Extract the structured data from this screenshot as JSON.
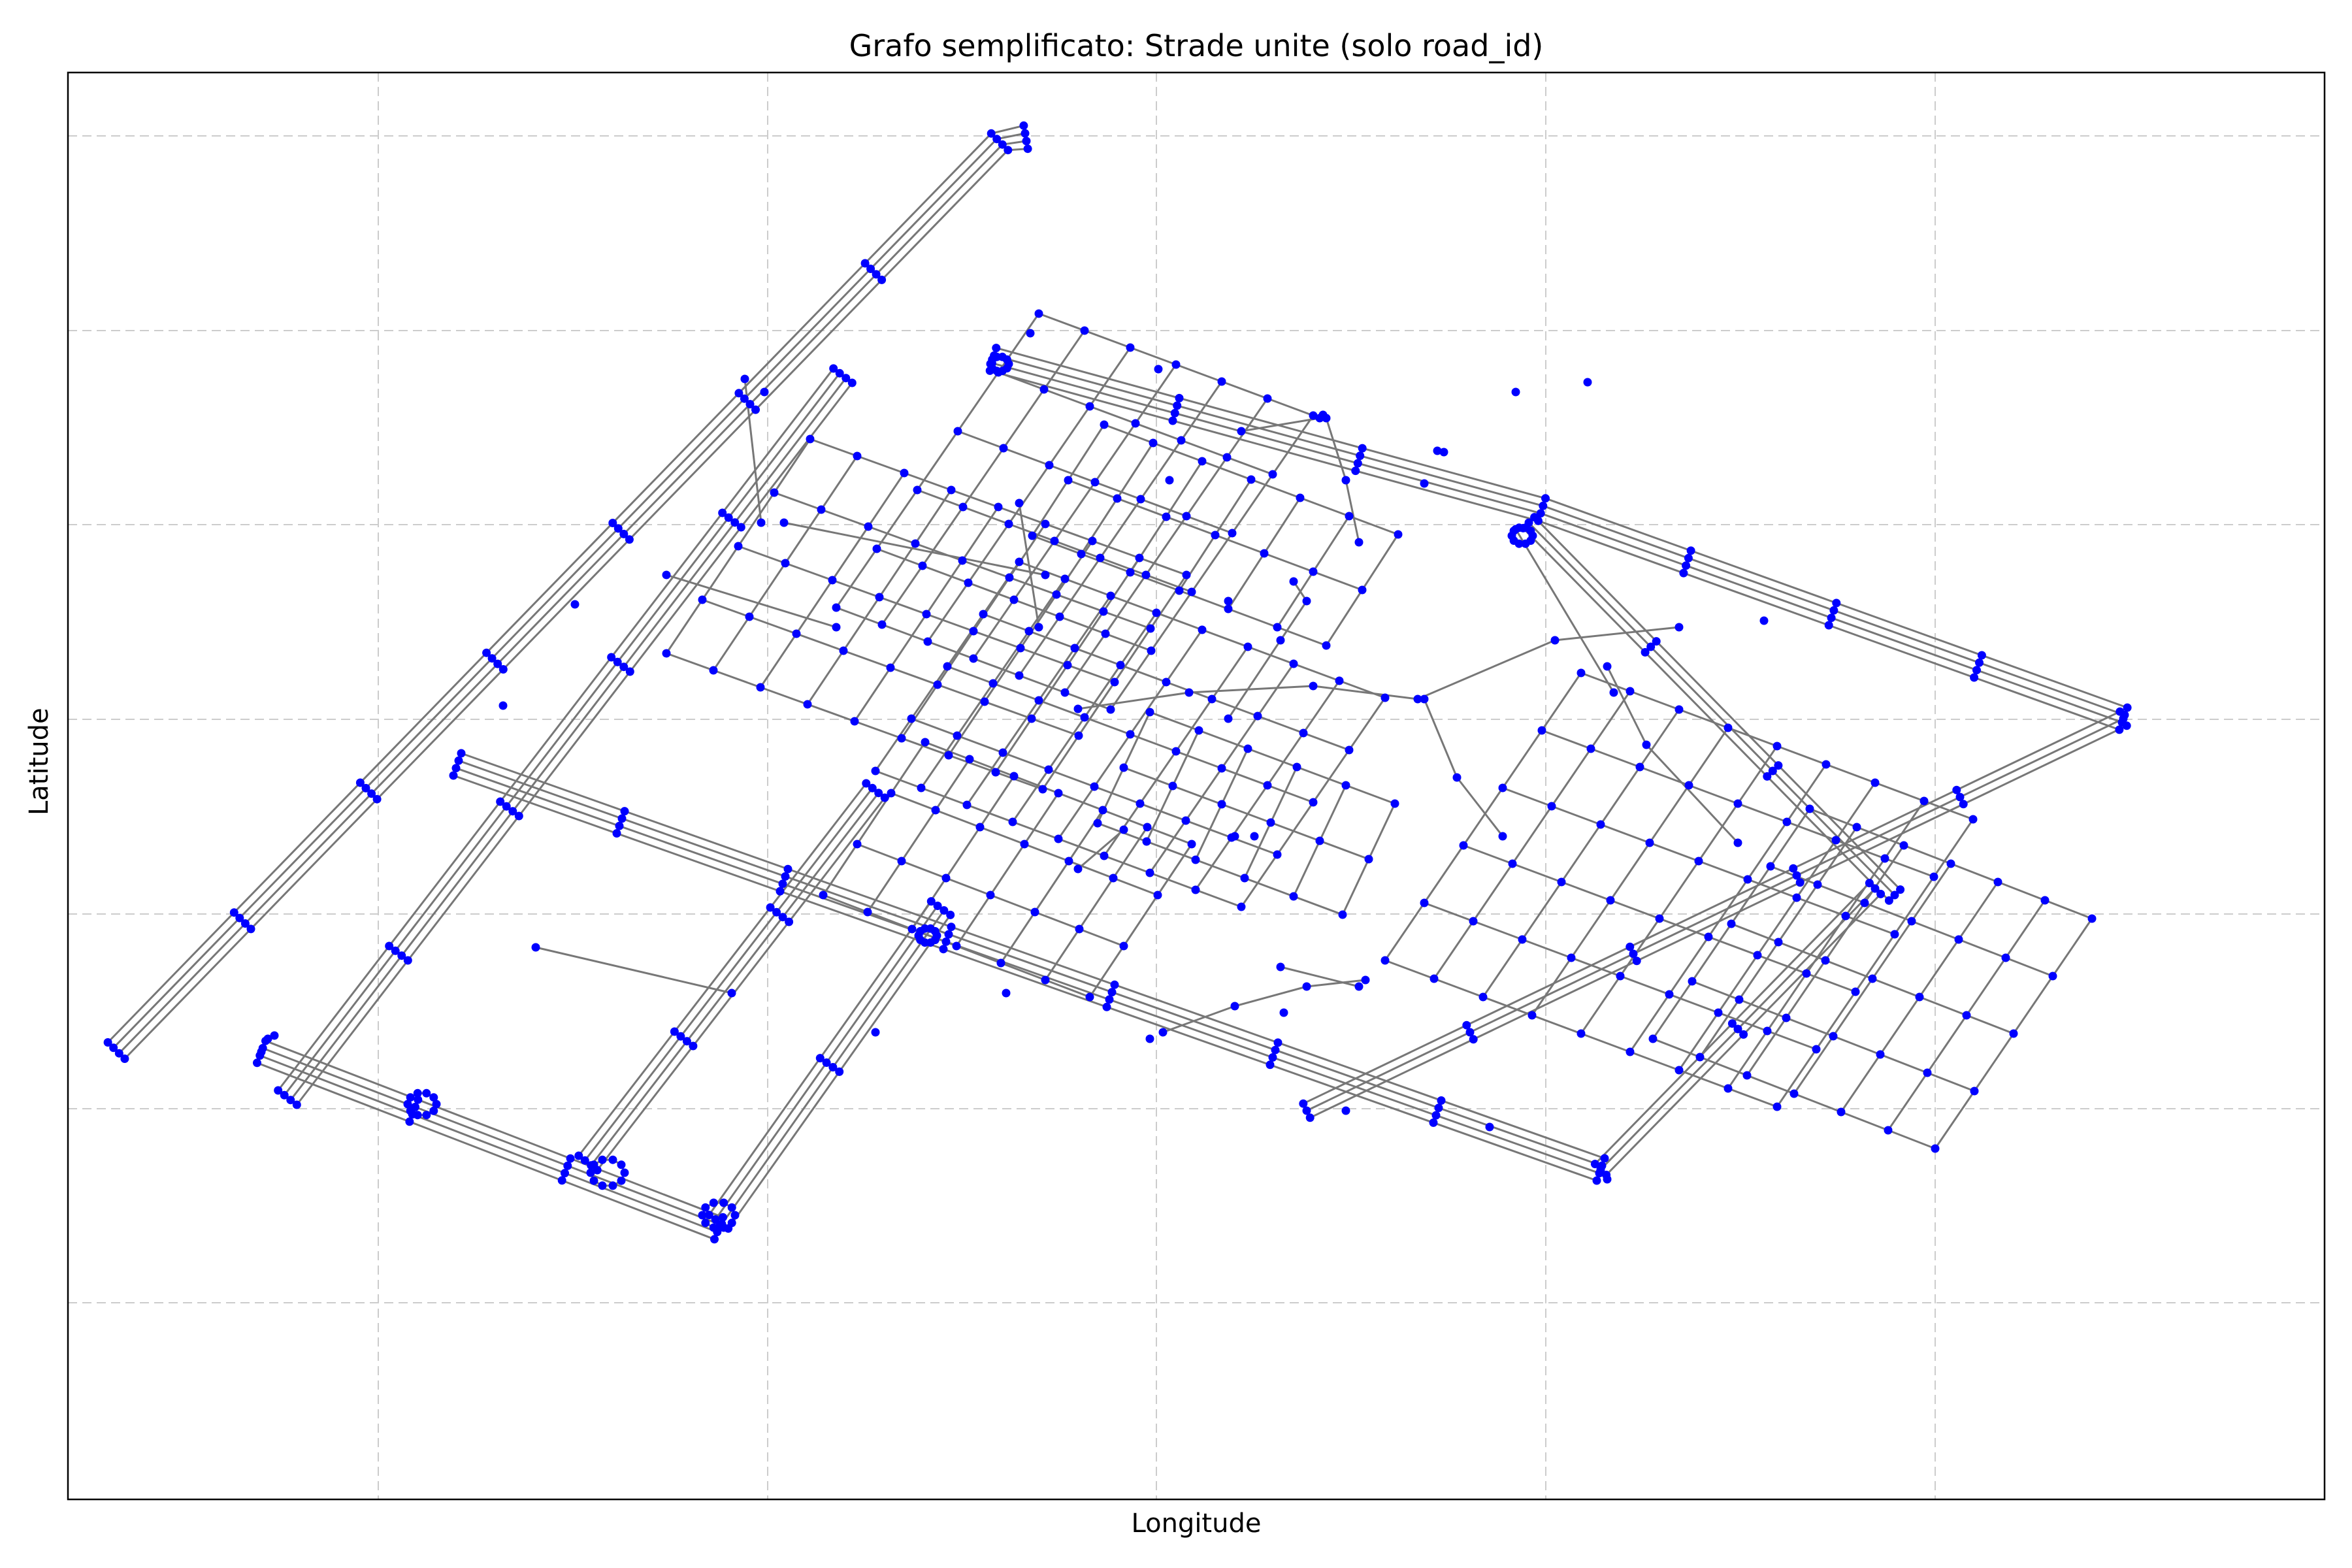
{
  "chart_data": {
    "type": "network",
    "title": "Grafo semplificato: Strade unite (solo road_id)",
    "xlabel": "Longitude",
    "ylabel": "Latitude",
    "xticks_visible": false,
    "yticks_visible": false,
    "grid": true,
    "legend": "none",
    "colors": {
      "node": "#0000ff",
      "edge": "#777777",
      "grid": "#cccccc",
      "frame": "#000000",
      "background": "#ffffff"
    },
    "layers": {
      "main_roads": [
        {
          "points": [
            [
              178,
              1608
            ],
            [
              1530,
              217
            ],
            [
              1570,
              210
            ]
          ],
          "parallel": 4
        },
        {
          "points": [
            [
              1520,
              550
            ],
            [
              2360,
              780
            ],
            [
              3250,
              1100
            ]
          ],
          "parallel": 4
        },
        {
          "points": [
            [
              400,
              1610
            ],
            [
              1100,
              1880
            ]
          ],
          "parallel": 4
        },
        {
          "points": [
            [
              700,
              1170
            ],
            [
              2450,
              1790
            ]
          ],
          "parallel": 4
        },
        {
          "points": [
            [
              440,
              1680
            ],
            [
              1290,
              575
            ]
          ],
          "parallel": 4
        },
        {
          "points": [
            [
              900,
              1780
            ],
            [
              1340,
              1210
            ]
          ],
          "parallel": 4
        },
        {
          "points": [
            [
              1100,
              1870
            ],
            [
              1440,
              1390
            ]
          ],
          "parallel": 4
        },
        {
          "points": [
            [
              2450,
              1790
            ],
            [
              2870,
              1360
            ]
          ],
          "parallel": 3
        },
        {
          "points": [
            [
              2000,
              1700
            ],
            [
              3250,
              1100
            ]
          ],
          "parallel": 3
        },
        {
          "points": [
            [
              2340,
              800
            ],
            [
              2900,
              1370
            ]
          ],
          "parallel": 3
        },
        {
          "points": [
            [
              2320,
              810
            ],
            [
              2470,
              1060
            ]
          ],
          "parallel": 1
        }
      ],
      "grid_blocks": [
        {
          "origin": [
            1280,
            930
          ],
          "step_a": [
            70,
            26
          ],
          "step_b": [
            62,
            -90
          ],
          "cols": 6,
          "rows": 5
        },
        {
          "origin": [
            1020,
            1000
          ],
          "step_a": [
            72,
            26
          ],
          "step_b": [
            55,
            -82
          ],
          "cols": 8,
          "rows": 4
        },
        {
          "origin": [
            1340,
            1180
          ],
          "step_a": [
            70,
            26
          ],
          "step_b": [
            55,
            -80
          ],
          "cols": 8,
          "rows": 4
        },
        {
          "origin": [
            1260,
            1370
          ],
          "step_a": [
            68,
            26
          ],
          "step_b": [
            52,
            -78
          ],
          "cols": 6,
          "rows": 3
        },
        {
          "origin": [
            2120,
            1470
          ],
          "step_a": [
            75,
            28
          ],
          "step_b": [
            60,
            -88
          ],
          "cols": 8,
          "rows": 5
        },
        {
          "origin": [
            2530,
            1590
          ],
          "step_a": [
            72,
            28
          ],
          "step_b": [
            60,
            -88
          ],
          "cols": 6,
          "rows": 4
        },
        {
          "origin": [
            1680,
            1260
          ],
          "step_a": [
            75,
            28
          ],
          "step_b": [
            40,
            -85
          ],
          "cols": 5,
          "rows": 2
        },
        {
          "origin": [
            1580,
            820
          ],
          "step_a": [
            75,
            28
          ],
          "step_b": [
            55,
            -85
          ],
          "cols": 6,
          "rows": 2
        }
      ],
      "extra_roads": [
        [
          [
            1650,
            1085
          ],
          [
            1820,
            1060
          ],
          [
            2010,
            1050
          ],
          [
            2170,
            1070
          ]
        ],
        [
          [
            2170,
            1070
          ],
          [
            2380,
            980
          ],
          [
            2570,
            960
          ]
        ],
        [
          [
            1880,
            1100
          ],
          [
            1960,
            980
          ],
          [
            2000,
            920
          ],
          [
            1980,
            890
          ]
        ],
        [
          [
            2180,
            1070
          ],
          [
            2230,
            1190
          ],
          [
            2300,
            1280
          ]
        ],
        [
          [
            1780,
            1580
          ],
          [
            1890,
            1540
          ],
          [
            2000,
            1510
          ],
          [
            2090,
            1500
          ]
        ],
        [
          [
            2460,
            1020
          ],
          [
            2520,
            1140
          ],
          [
            2660,
            1290
          ]
        ],
        [
          [
            820,
            1450
          ],
          [
            1120,
            1520
          ]
        ],
        [
          [
            1960,
            1480
          ],
          [
            2080,
            1510
          ]
        ],
        [
          [
            1020,
            880
          ],
          [
            1280,
            960
          ]
        ],
        [
          [
            2030,
            640
          ],
          [
            2060,
            735
          ],
          [
            2080,
            830
          ]
        ],
        [
          [
            1900,
            660
          ],
          [
            2020,
            640
          ]
        ],
        [
          [
            1200,
            800
          ],
          [
            1600,
            880
          ]
        ],
        [
          [
            1720,
            1270
          ],
          [
            1650,
            1330
          ]
        ],
        [
          [
            1140,
            580
          ],
          [
            1165,
            800
          ]
        ],
        [
          [
            1560,
            770
          ],
          [
            1590,
            960
          ]
        ]
      ],
      "roundabouts": [
        {
          "center": [
            646,
            1690
          ],
          "radius": 22
        },
        {
          "center": [
            930,
            1795
          ],
          "radius": 26
        },
        {
          "center": [
            1100,
            1860
          ],
          "radius": 25
        },
        {
          "center": [
            1530,
            557
          ],
          "radius": 14
        },
        {
          "center": [
            1420,
            1432
          ],
          "radius": 14
        },
        {
          "center": [
            2330,
            820
          ],
          "radius": 16
        }
      ],
      "dead_end_nodes": [
        [
          1577,
          510
        ],
        [
          1773,
          565
        ],
        [
          2025,
          635
        ],
        [
          2200,
          690
        ],
        [
          2210,
          692
        ],
        [
          1170,
          600
        ],
        [
          1140,
          580
        ],
        [
          400,
          1610
        ],
        [
          410,
          1590
        ],
        [
          420,
          1585
        ],
        [
          770,
          1080
        ],
        [
          880,
          925
        ],
        [
          1920,
          1280
        ],
        [
          1890,
          1280
        ],
        [
          1965,
          1550
        ],
        [
          1760,
          1590
        ],
        [
          1540,
          1520
        ],
        [
          2280,
          1725
        ],
        [
          2460,
          1805
        ],
        [
          1790,
          735
        ],
        [
          2700,
          950
        ],
        [
          2430,
          585
        ],
        [
          2320,
          600
        ],
        [
          2180,
          740
        ],
        [
          1880,
          920
        ],
        [
          1340,
          1580
        ],
        [
          2060,
          1700
        ]
      ]
    }
  }
}
